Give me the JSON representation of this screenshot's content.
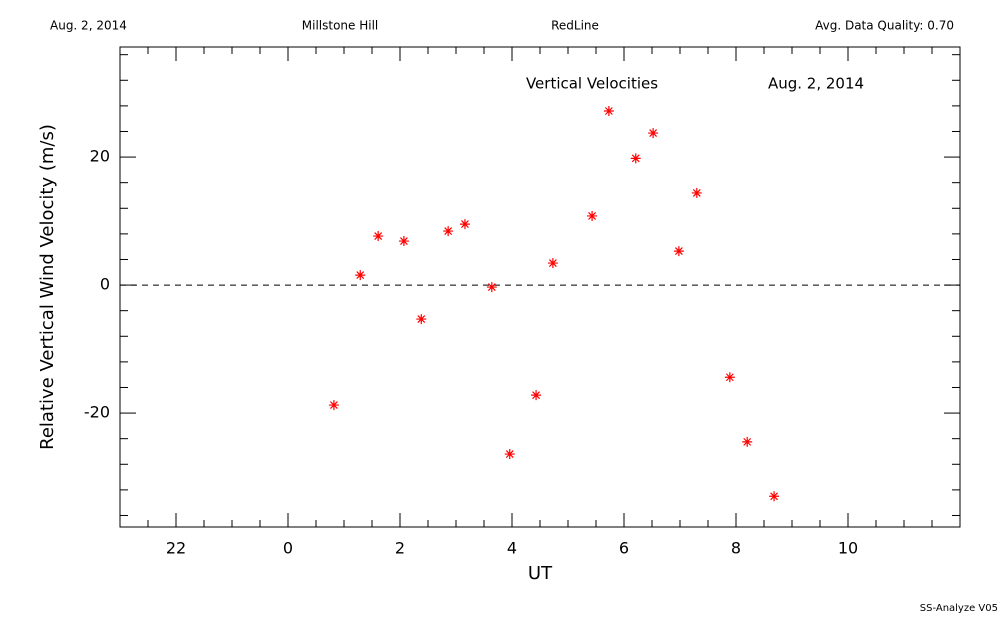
{
  "header": {
    "date": "Aug. 2, 2014",
    "site": "Millstone Hill",
    "filter": "RedLine",
    "quality": "Avg. Data Quality: 0.70"
  },
  "footer": "SS-Analyze V05",
  "chart_data": {
    "type": "scatter",
    "title": "Vertical Velocities",
    "annotation": "Aug. 2, 2014",
    "x_label": "UT",
    "y_label": "Relative Vertical Wind Velocity (m/s)",
    "series": [
      {
        "name": "Vertical Velocities",
        "color": "#ff0000",
        "x": [
          0.82,
          1.29,
          1.61,
          2.07,
          2.38,
          2.86,
          3.16,
          3.64,
          3.96,
          4.43,
          4.73,
          5.43,
          5.73,
          6.21,
          6.52,
          6.98,
          7.3,
          7.89,
          8.2,
          8.68
        ],
        "values": [
          -18.75,
          1.56,
          7.66,
          6.88,
          -5.31,
          8.44,
          9.53,
          -0.31,
          -26.4,
          -17.2,
          3.44,
          10.8,
          27.2,
          19.8,
          23.75,
          5.31,
          14.4,
          -14.4,
          -24.5,
          -33.0
        ]
      }
    ],
    "xlim": [
      -3,
      12
    ],
    "xticks": [
      {
        "value": -2,
        "label": "22"
      },
      0,
      2,
      4,
      6,
      8,
      10
    ],
    "xticks_minor": [
      -2.5,
      -1.5,
      -1,
      -0.5,
      0.5,
      1,
      1.5,
      2.5,
      3,
      3.5,
      4.5,
      5,
      5.5,
      6.5,
      7,
      7.5,
      8.5,
      9,
      9.5,
      10.5,
      11,
      11.5
    ],
    "ylim": [
      -37.8,
      37.2
    ],
    "yticks": [
      -20,
      0,
      20
    ],
    "yticks_minor": [
      -36,
      -32,
      -28,
      -24,
      -16,
      -12,
      -8,
      -4,
      4,
      8,
      12,
      16,
      24,
      28,
      32,
      36
    ],
    "hline": 0,
    "grid": false
  }
}
